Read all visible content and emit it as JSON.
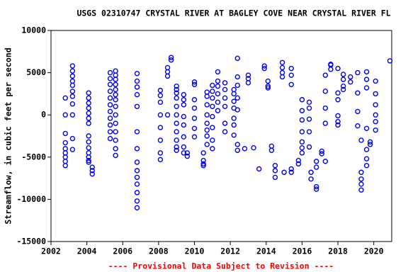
{
  "chart_data": {
    "type": "scatter",
    "title": "USGS 02310747 CRYSTAL RIVER AT BAGLEY COVE NEAR CRYSTAL RIVER FL",
    "y_label": "Streamflow, in cubic feet per second",
    "footer": "---- Provisional Data Subject to Revision ----",
    "xlim": [
      2002,
      2021
    ],
    "xticks": [
      2002,
      2004,
      2006,
      2008,
      2010,
      2012,
      2014,
      2016,
      2018,
      2020
    ],
    "ylim": [
      -15000,
      10000
    ],
    "yticks": [
      -15000,
      -10000,
      -5000,
      0,
      5000,
      10000
    ],
    "color": "#0000ff",
    "x": [
      2002.8,
      2002.8,
      2002.8,
      2002.8,
      2002.8,
      2002.8,
      2002.8,
      2002.8,
      2002.8,
      2003.2,
      2003.2,
      2003.2,
      2003.2,
      2003.2,
      2003.2,
      2003.2,
      2003.2,
      2003.2,
      2003.2,
      2003.2,
      2004.1,
      2004.1,
      2004.1,
      2004.1,
      2004.1,
      2004.1,
      2004.1,
      2004.1,
      2004.1,
      2004.1,
      2004.1,
      2004.1,
      2004.1,
      2004.1,
      2004.3,
      2004.3,
      2004.3,
      2005.3,
      2005.3,
      2005.3,
      2005.3,
      2005.3,
      2005.3,
      2005.3,
      2005.3,
      2005.3,
      2005.3,
      2005.3,
      2005.6,
      2005.6,
      2005.6,
      2005.6,
      2005.6,
      2005.6,
      2005.6,
      2005.6,
      2005.6,
      2005.6,
      2005.6,
      2005.6,
      2005.6,
      2005.6,
      2006.8,
      2006.8,
      2006.8,
      2006.8,
      2006.8,
      2006.8,
      2006.8,
      2006.8,
      2006.8,
      2006.8,
      2006.8,
      2006.8,
      2006.8,
      2006.8,
      2008.1,
      2008.1,
      2008.1,
      2008.1,
      2008.1,
      2008.1,
      2008.1,
      2008.1,
      2008.5,
      2008.5,
      2008.5,
      2008.5,
      2008.7,
      2008.7,
      2009.0,
      2009.0,
      2009.0,
      2009.0,
      2009.0,
      2009.0,
      2009.0,
      2009.0,
      2009.0,
      2009.0,
      2009.0,
      2009.4,
      2009.4,
      2009.4,
      2009.4,
      2009.4,
      2009.4,
      2009.4,
      2009.4,
      2009.6,
      2009.6,
      2010.0,
      2010.0,
      2010.0,
      2010.0,
      2010.0,
      2010.0,
      2010.0,
      2010.5,
      2010.5,
      2010.5,
      2010.5,
      2010.7,
      2010.7,
      2010.7,
      2010.7,
      2010.7,
      2010.7,
      2010.7,
      2010.7,
      2011.0,
      2011.0,
      2011.0,
      2011.0,
      2011.0,
      2011.0,
      2011.0,
      2011.0,
      2011.3,
      2011.3,
      2011.3,
      2011.3,
      2011.3,
      2011.3,
      2011.7,
      2011.7,
      2011.7,
      2011.7,
      2011.7,
      2011.7,
      2012.2,
      2012.2,
      2012.2,
      2012.2,
      2012.2,
      2012.2,
      2012.2,
      2012.4,
      2012.4,
      2012.4,
      2012.4,
      2012.4,
      2012.4,
      2012.4,
      2012.8,
      2013.0,
      2013.0,
      2013.0,
      2013.3,
      2013.6,
      2013.9,
      2013.9,
      2014.1,
      2014.1,
      2014.1,
      2014.3,
      2014.3,
      2014.5,
      2014.5,
      2014.5,
      2014.9,
      2014.9,
      2014.9,
      2014.9,
      2015.0,
      2015.4,
      2015.4,
      2015.4,
      2015.4,
      2015.4,
      2015.8,
      2015.8,
      2016.0,
      2016.0,
      2016.0,
      2016.0,
      2016.0,
      2016.0,
      2016.0,
      2016.4,
      2016.4,
      2016.4,
      2016.4,
      2016.4,
      2016.5,
      2016.5,
      2016.8,
      2016.8,
      2016.8,
      2016.8,
      2017.1,
      2017.1,
      2017.3,
      2017.3,
      2017.3,
      2017.3,
      2017.3,
      2017.6,
      2017.6,
      2017.6,
      2018.0,
      2018.0,
      2018.0,
      2018.0,
      2018.0,
      2018.0,
      2018.3,
      2018.3,
      2018.3,
      2018.3,
      2018.7,
      2018.7,
      2019.1,
      2019.1,
      2019.1,
      2019.1,
      2019.3,
      2019.3,
      2019.3,
      2019.3,
      2019.3,
      2019.6,
      2019.6,
      2019.6,
      2019.6,
      2019.6,
      2019.6,
      2019.6,
      2019.8,
      2019.8,
      2020.1,
      2020.1,
      2020.1,
      2020.1,
      2020.1,
      2020.1,
      2020.9
    ],
    "values": [
      2000,
      0,
      -2200,
      -3300,
      -4000,
      -4500,
      -5000,
      -5500,
      -6000,
      5800,
      5200,
      4600,
      4000,
      3500,
      2800,
      2200,
      1300,
      0,
      -2800,
      -4100,
      2600,
      2000,
      1400,
      800,
      200,
      -400,
      -1000,
      -2500,
      -3200,
      -3900,
      -4500,
      -5000,
      -5400,
      -5600,
      -6200,
      -6600,
      -7000,
      5000,
      4300,
      3600,
      2800,
      2000,
      1200,
      400,
      -400,
      -1200,
      -2000,
      -2800,
      5200,
      4700,
      4200,
      3600,
      3000,
      2400,
      1800,
      1000,
      0,
      -1000,
      -2000,
      -3000,
      -4000,
      -4800,
      4900,
      4000,
      3300,
      2400,
      1000,
      -2000,
      -4000,
      -5600,
      -6600,
      -7400,
      -8200,
      -9200,
      -10200,
      -11000,
      2900,
      2300,
      1500,
      0,
      -1500,
      -3000,
      -4500,
      -5300,
      5600,
      5100,
      4600,
      0,
      6800,
      6500,
      3400,
      3000,
      2600,
      2000,
      1000,
      0,
      -1000,
      -2000,
      -3000,
      -3800,
      -4200,
      2400,
      1800,
      1200,
      -200,
      -1200,
      -2600,
      -3800,
      -4500,
      -4500,
      -4900,
      3900,
      3600,
      1800,
      800,
      -400,
      -1600,
      -2600,
      -4500,
      -5400,
      -5800,
      -6000,
      2700,
      2200,
      1200,
      0,
      -1000,
      -1800,
      -2500,
      -3500,
      3500,
      2800,
      2000,
      1000,
      -200,
      -1500,
      -3000,
      -4000,
      5100,
      4000,
      3400,
      2500,
      1500,
      500,
      3800,
      3000,
      2000,
      1000,
      -1000,
      -2000,
      3000,
      2500,
      1600,
      800,
      -400,
      -1200,
      -2400,
      6700,
      4500,
      3500,
      2000,
      600,
      -3500,
      -4200,
      -4000,
      4700,
      4300,
      3800,
      -3900,
      -6400,
      5800,
      5500,
      4000,
      3400,
      3200,
      -3700,
      -4200,
      -6000,
      -6600,
      -7400,
      6200,
      5600,
      5000,
      4500,
      -6800,
      5500,
      4700,
      3600,
      -6400,
      -6800,
      -5800,
      -5400,
      1800,
      500,
      -600,
      -2000,
      -3200,
      -3900,
      -4500,
      1500,
      800,
      -500,
      -2000,
      -3800,
      -6800,
      -7600,
      -8500,
      -8800,
      -6200,
      -5500,
      -4300,
      -4600,
      4700,
      2800,
      800,
      -1000,
      -5500,
      5900,
      5400,
      6000,
      5500,
      2600,
      1800,
      -100,
      -800,
      -1200,
      3000,
      4800,
      4200,
      3400,
      4500,
      3900,
      5000,
      2600,
      400,
      -1300,
      -3000,
      -6800,
      -7600,
      -8200,
      -8900,
      5100,
      4200,
      3200,
      -1600,
      -4100,
      -5200,
      -6000,
      -3200,
      -3500,
      4000,
      2500,
      1200,
      0,
      -800,
      -1800,
      6400
    ]
  }
}
